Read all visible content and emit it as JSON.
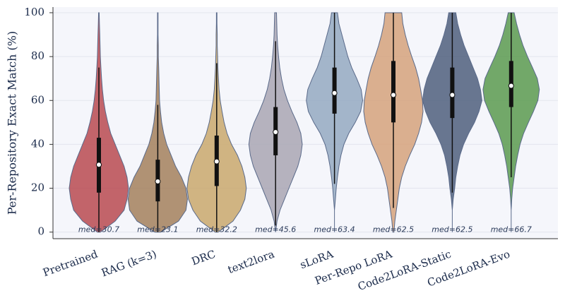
{
  "chart_data": {
    "type": "violin",
    "y_label": "Per-Repository Exact Match (%)",
    "categories": [
      "Pretrained",
      "RAG (k=3)",
      "DRC",
      "text2lora",
      "sLoRA",
      "Per-Repo LoRA",
      "Code2LoRA-Static",
      "Code2LoRA-Evo"
    ],
    "values": [
      30.7,
      23.1,
      32.2,
      45.6,
      63.4,
      62.5,
      62.5,
      66.7
    ],
    "value_labels": [
      "med=30.7",
      "med=23.1",
      "med=32.2",
      "med=45.6",
      "med=63.4",
      "med=62.5",
      "med=62.5",
      "med=66.7"
    ],
    "q1": [
      18,
      14,
      21,
      35,
      54,
      50,
      52,
      57
    ],
    "q3": [
      43,
      33,
      44,
      57,
      75,
      78,
      75,
      78
    ],
    "whisker_low": [
      0,
      0,
      0,
      3,
      22,
      11,
      18,
      25
    ],
    "whisker_high": [
      75,
      58,
      77,
      87,
      100,
      100,
      100,
      100
    ],
    "colors": [
      "#b94a50",
      "#a3805c",
      "#c9a86c",
      "#a9a6b3",
      "#94a9c1",
      "#d5a27b",
      "#4f5f7c",
      "#5b9a4f"
    ],
    "density_y": [
      0,
      5,
      10,
      15,
      20,
      25,
      30,
      35,
      40,
      45,
      50,
      55,
      60,
      65,
      70,
      75,
      80,
      85,
      90,
      95,
      100
    ],
    "density": [
      [
        0.05,
        0.55,
        0.85,
        0.95,
        1.0,
        0.95,
        0.85,
        0.7,
        0.55,
        0.4,
        0.3,
        0.22,
        0.16,
        0.12,
        0.09,
        0.07,
        0.05,
        0.04,
        0.03,
        0.02,
        0.01
      ],
      [
        0.1,
        0.7,
        0.95,
        1.0,
        0.95,
        0.8,
        0.6,
        0.45,
        0.3,
        0.2,
        0.13,
        0.09,
        0.06,
        0.05,
        0.04,
        0.03,
        0.02,
        0.02,
        0.01,
        0.01,
        0.01
      ],
      [
        0.05,
        0.55,
        0.8,
        0.95,
        1.0,
        0.95,
        0.85,
        0.7,
        0.5,
        0.35,
        0.25,
        0.18,
        0.12,
        0.08,
        0.06,
        0.04,
        0.03,
        0.02,
        0.02,
        0.01,
        0.01
      ],
      [
        0,
        0.05,
        0.15,
        0.3,
        0.45,
        0.6,
        0.75,
        0.85,
        0.9,
        0.85,
        0.72,
        0.55,
        0.4,
        0.28,
        0.2,
        0.14,
        0.1,
        0.07,
        0.05,
        0.04,
        0.03
      ],
      [
        0,
        0,
        0,
        0.03,
        0.06,
        0.1,
        0.15,
        0.22,
        0.32,
        0.48,
        0.7,
        0.88,
        0.95,
        0.9,
        0.75,
        0.58,
        0.45,
        0.35,
        0.25,
        0.15,
        0.1
      ],
      [
        0.02,
        0.05,
        0.1,
        0.15,
        0.2,
        0.28,
        0.4,
        0.55,
        0.72,
        0.85,
        0.95,
        1.0,
        0.98,
        0.92,
        0.85,
        0.75,
        0.62,
        0.5,
        0.4,
        0.32,
        0.28
      ],
      [
        0,
        0,
        0,
        0.03,
        0.08,
        0.12,
        0.18,
        0.26,
        0.38,
        0.55,
        0.75,
        0.9,
        1.0,
        0.95,
        0.85,
        0.7,
        0.55,
        0.4,
        0.28,
        0.18,
        0.12
      ],
      [
        0,
        0,
        0,
        0.02,
        0.05,
        0.1,
        0.15,
        0.22,
        0.3,
        0.42,
        0.58,
        0.75,
        0.9,
        0.95,
        0.88,
        0.72,
        0.55,
        0.4,
        0.28,
        0.18,
        0.1
      ]
    ],
    "ylim": [
      -3,
      100
    ],
    "yticks": [
      0,
      20,
      40,
      60,
      80,
      100
    ],
    "grid": true
  }
}
